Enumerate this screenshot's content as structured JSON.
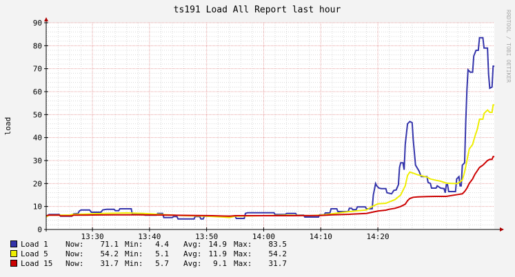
{
  "chart_data": {
    "type": "line",
    "title": "ts191 Load All Report last hour",
    "ylabel": "load",
    "watermark": "RRDTOOL / TOBI OETIKER",
    "ylim": [
      0,
      90
    ],
    "yticks": [
      0,
      10,
      20,
      30,
      40,
      50,
      60,
      70,
      80,
      90
    ],
    "xlim_minutes": [
      -8.1,
      56.8
    ],
    "xticks": [
      {
        "label": "13:30",
        "m": 0
      },
      {
        "label": "13:40",
        "m": 10
      },
      {
        "label": "13:50",
        "m": 20
      },
      {
        "label": "14:00",
        "m": 30
      },
      {
        "label": "14:10",
        "m": 40
      },
      {
        "label": "14:20",
        "m": 50
      }
    ],
    "grid": true,
    "legend_position": "bottom",
    "colors": {
      "background": "#f3f3f3",
      "plot": "#ffffff",
      "major_grid": "#e8a0a0",
      "minor_grid": "#d8d8d8",
      "axis": "#000000",
      "arrow": "#aa0000",
      "text": "#000000",
      "watermark": "#aaaaaa"
    },
    "series": [
      {
        "name": "Load 1",
        "color": "#3333aa",
        "now": "71.1",
        "min": "4.4",
        "avg": "14.9",
        "max": "83.5",
        "points": [
          [
            -8.1,
            5.5
          ],
          [
            -7.6,
            6.5
          ],
          [
            -5.8,
            6.5
          ],
          [
            -5.6,
            5.8
          ],
          [
            -3.6,
            5.8
          ],
          [
            -3.3,
            6.8
          ],
          [
            -2.5,
            7.0
          ],
          [
            -2.3,
            8.0
          ],
          [
            -2.0,
            8.5
          ],
          [
            -0.5,
            8.5
          ],
          [
            -0.2,
            7.5
          ],
          [
            1.5,
            7.5
          ],
          [
            1.8,
            8.5
          ],
          [
            2.5,
            8.8
          ],
          [
            3.8,
            8.8
          ],
          [
            4.0,
            8.2
          ],
          [
            4.6,
            8.2
          ],
          [
            4.8,
            9.0
          ],
          [
            6.8,
            9.0
          ],
          [
            7.0,
            6.5
          ],
          [
            9.0,
            6.5
          ],
          [
            9.2,
            6.2
          ],
          [
            11.2,
            6.2
          ],
          [
            11.4,
            7.0
          ],
          [
            12.3,
            7.0
          ],
          [
            12.5,
            5.2
          ],
          [
            14.0,
            5.2
          ],
          [
            14.2,
            5.6
          ],
          [
            14.8,
            5.6
          ],
          [
            15.0,
            4.6
          ],
          [
            17.8,
            4.6
          ],
          [
            18.0,
            5.6
          ],
          [
            18.8,
            5.6
          ],
          [
            19.0,
            4.6
          ],
          [
            19.4,
            4.6
          ],
          [
            19.6,
            5.8
          ],
          [
            25.0,
            5.8
          ],
          [
            25.2,
            4.8
          ],
          [
            26.6,
            4.8
          ],
          [
            26.8,
            7.0
          ],
          [
            27.2,
            7.3
          ],
          [
            31.8,
            7.3
          ],
          [
            32.0,
            6.5
          ],
          [
            33.8,
            6.5
          ],
          [
            34.0,
            7.0
          ],
          [
            35.6,
            7.0
          ],
          [
            35.8,
            6.2
          ],
          [
            37.0,
            6.2
          ],
          [
            37.2,
            5.4
          ],
          [
            39.6,
            5.4
          ],
          [
            39.8,
            6.4
          ],
          [
            40.6,
            6.4
          ],
          [
            40.8,
            7.2
          ],
          [
            41.6,
            7.2
          ],
          [
            41.8,
            9.0
          ],
          [
            42.8,
            9.0
          ],
          [
            43.0,
            7.8
          ],
          [
            44.8,
            7.8
          ],
          [
            45.0,
            9.2
          ],
          [
            45.4,
            9.2
          ],
          [
            45.6,
            8.6
          ],
          [
            46.2,
            8.6
          ],
          [
            46.4,
            9.8
          ],
          [
            47.8,
            9.8
          ],
          [
            48.0,
            9.0
          ],
          [
            49.0,
            9.0
          ],
          [
            49.2,
            15.0
          ],
          [
            49.6,
            20.0
          ],
          [
            49.8,
            19.0
          ],
          [
            50.2,
            18.0
          ],
          [
            50.6,
            17.8
          ],
          [
            51.4,
            17.8
          ],
          [
            51.6,
            16.0
          ],
          [
            52.4,
            15.5
          ],
          [
            52.8,
            17.0
          ],
          [
            53.2,
            17.2
          ],
          [
            53.6,
            19.5
          ],
          [
            53.8,
            27.0
          ],
          [
            54.0,
            29.0
          ],
          [
            54.4,
            29.0
          ],
          [
            54.6,
            26.0
          ],
          [
            54.8,
            37.0
          ],
          [
            55.2,
            46.0
          ],
          [
            55.6,
            47.0
          ],
          [
            56.0,
            46.5
          ],
          [
            56.2,
            39.0
          ],
          [
            56.6,
            28.0
          ],
          [
            57.2,
            25.5
          ],
          [
            57.6,
            23.0
          ],
          [
            58.6,
            23.0
          ],
          [
            58.8,
            20.5
          ],
          [
            59.2,
            20.0
          ],
          [
            59.4,
            18.0
          ],
          [
            60.2,
            18.0
          ],
          [
            60.4,
            19.0
          ],
          [
            61.0,
            18.0
          ],
          [
            61.6,
            17.8
          ],
          [
            61.8,
            16.0
          ],
          [
            62.0,
            19.5
          ],
          [
            62.2,
            19.5
          ],
          [
            62.4,
            16.5
          ],
          [
            63.6,
            16.5
          ],
          [
            63.8,
            22.0
          ],
          [
            64.2,
            23.0
          ],
          [
            64.4,
            19.0
          ],
          [
            64.6,
            19.0
          ],
          [
            64.8,
            28.0
          ],
          [
            65.2,
            29.0
          ],
          [
            65.4,
            47.0
          ],
          [
            65.6,
            61.0
          ],
          [
            65.8,
            69.5
          ],
          [
            66.2,
            68.5
          ],
          [
            66.6,
            68.5
          ],
          [
            66.8,
            75.5
          ],
          [
            67.2,
            78.0
          ],
          [
            67.6,
            78.0
          ],
          [
            67.8,
            83.5
          ],
          [
            68.4,
            83.5
          ],
          [
            68.6,
            79.0
          ],
          [
            69.2,
            79.0
          ],
          [
            69.4,
            67.5
          ],
          [
            69.6,
            61.5
          ],
          [
            70.0,
            62.0
          ],
          [
            70.2,
            71.1
          ],
          [
            70.4,
            71.1
          ]
        ]
      },
      {
        "name": "Load 5",
        "color": "#eeee00",
        "now": "54.2",
        "min": "5.1",
        "avg": "11.9",
        "max": "54.2",
        "points": [
          [
            -8.1,
            5.5
          ],
          [
            -7.6,
            6.2
          ],
          [
            -4.0,
            6.2
          ],
          [
            -3.6,
            6.5
          ],
          [
            0.0,
            6.8
          ],
          [
            2.0,
            7.0
          ],
          [
            6.0,
            7.2
          ],
          [
            9.0,
            7.0
          ],
          [
            12.0,
            6.5
          ],
          [
            16.0,
            6.0
          ],
          [
            20.0,
            5.8
          ],
          [
            23.0,
            5.4
          ],
          [
            24.0,
            5.2
          ],
          [
            25.0,
            5.8
          ],
          [
            30.0,
            6.0
          ],
          [
            34.0,
            6.2
          ],
          [
            38.0,
            6.0
          ],
          [
            40.0,
            6.2
          ],
          [
            42.0,
            6.8
          ],
          [
            44.0,
            7.5
          ],
          [
            46.0,
            8.0
          ],
          [
            48.0,
            8.5
          ],
          [
            49.0,
            10.0
          ],
          [
            50.0,
            11.2
          ],
          [
            51.4,
            11.4
          ],
          [
            52.0,
            12.0
          ],
          [
            53.0,
            13.0
          ],
          [
            54.0,
            15.0
          ],
          [
            54.8,
            19.0
          ],
          [
            55.2,
            23.5
          ],
          [
            55.6,
            25.0
          ],
          [
            56.2,
            24.5
          ],
          [
            57.0,
            23.8
          ],
          [
            58.0,
            23.2
          ],
          [
            58.6,
            22.8
          ],
          [
            59.2,
            22.0
          ],
          [
            60.0,
            21.5
          ],
          [
            61.0,
            21.0
          ],
          [
            62.0,
            20.2
          ],
          [
            63.0,
            20.0
          ],
          [
            64.0,
            20.0
          ],
          [
            64.8,
            21.5
          ],
          [
            65.2,
            25.0
          ],
          [
            65.6,
            30.0
          ],
          [
            66.0,
            35.0
          ],
          [
            66.6,
            37.0
          ],
          [
            67.0,
            40.5
          ],
          [
            67.4,
            43.5
          ],
          [
            67.8,
            48.0
          ],
          [
            68.4,
            48.0
          ],
          [
            68.6,
            50.5
          ],
          [
            69.2,
            52.0
          ],
          [
            69.6,
            51.0
          ],
          [
            70.0,
            51.0
          ],
          [
            70.2,
            54.2
          ],
          [
            70.4,
            54.2
          ]
        ]
      },
      {
        "name": "Load 15",
        "color": "#cc0000",
        "now": "31.7",
        "min": "5.7",
        "avg": "9.1",
        "max": "31.7",
        "points": [
          [
            -8.1,
            6.0
          ],
          [
            -7.6,
            6.2
          ],
          [
            -5.8,
            6.2
          ],
          [
            -5.6,
            5.9
          ],
          [
            -3.6,
            5.9
          ],
          [
            -3.3,
            6.2
          ],
          [
            0.0,
            6.3
          ],
          [
            4.0,
            6.4
          ],
          [
            8.0,
            6.4
          ],
          [
            11.0,
            6.3
          ],
          [
            14.0,
            6.2
          ],
          [
            18.0,
            6.1
          ],
          [
            21.0,
            6.0
          ],
          [
            24.0,
            5.8
          ],
          [
            25.0,
            6.0
          ],
          [
            32.0,
            6.0
          ],
          [
            35.0,
            6.0
          ],
          [
            40.0,
            6.1
          ],
          [
            42.0,
            6.4
          ],
          [
            45.0,
            6.6
          ],
          [
            48.0,
            7.0
          ],
          [
            49.0,
            7.5
          ],
          [
            50.0,
            8.0
          ],
          [
            51.4,
            8.4
          ],
          [
            52.0,
            8.8
          ],
          [
            53.0,
            9.2
          ],
          [
            54.0,
            10.0
          ],
          [
            54.8,
            11.0
          ],
          [
            55.2,
            12.5
          ],
          [
            55.6,
            13.5
          ],
          [
            56.2,
            14.0
          ],
          [
            57.0,
            14.2
          ],
          [
            58.6,
            14.3
          ],
          [
            60.0,
            14.4
          ],
          [
            62.0,
            14.4
          ],
          [
            64.0,
            15.2
          ],
          [
            64.8,
            15.5
          ],
          [
            65.2,
            16.5
          ],
          [
            65.6,
            18.0
          ],
          [
            66.0,
            20.0
          ],
          [
            66.6,
            22.0
          ],
          [
            67.0,
            24.0
          ],
          [
            67.4,
            25.5
          ],
          [
            67.8,
            27.0
          ],
          [
            68.4,
            28.0
          ],
          [
            68.8,
            29.0
          ],
          [
            69.2,
            30.0
          ],
          [
            69.6,
            30.5
          ],
          [
            70.0,
            30.5
          ],
          [
            70.2,
            31.7
          ],
          [
            70.4,
            31.7
          ]
        ]
      }
    ]
  },
  "legend_labels": {
    "now": "Now:",
    "min": "Min:",
    "avg": "Avg:",
    "max": "Max:"
  }
}
